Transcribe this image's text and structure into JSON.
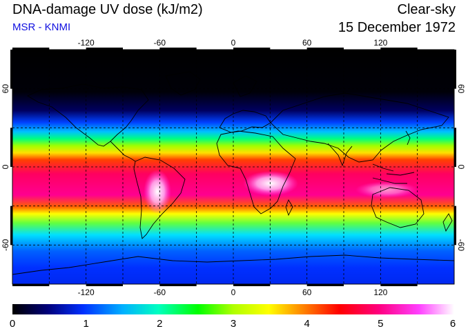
{
  "header": {
    "title": "DNA-damage UV dose (kJ/m2)",
    "subtitle": "MSR - KNMI",
    "condition": "Clear-sky",
    "date": "15 December 1972"
  },
  "map": {
    "projection": "equirectangular",
    "lon_range": [
      -180,
      180
    ],
    "lat_range": [
      -90,
      90
    ],
    "x_ticks": [
      "-120",
      "-60",
      "0",
      "60",
      "120"
    ],
    "y_ticks_left": [
      "60",
      "0",
      "-60"
    ],
    "y_ticks_right": [
      "60",
      "0",
      "-60"
    ],
    "grid_style": "dashed",
    "coastlines": "black"
  },
  "colorbar": {
    "min": 0,
    "max": 6,
    "labels": [
      "0",
      "1",
      "2",
      "3",
      "4",
      "5",
      "6"
    ],
    "colors": [
      "#000000",
      "#00007a",
      "#0030ff",
      "#00a0ff",
      "#00ffc0",
      "#00ff00",
      "#a0ff00",
      "#ffff00",
      "#ff8000",
      "#ff0000",
      "#ff0080",
      "#ff40ff",
      "#ffffff"
    ]
  }
}
